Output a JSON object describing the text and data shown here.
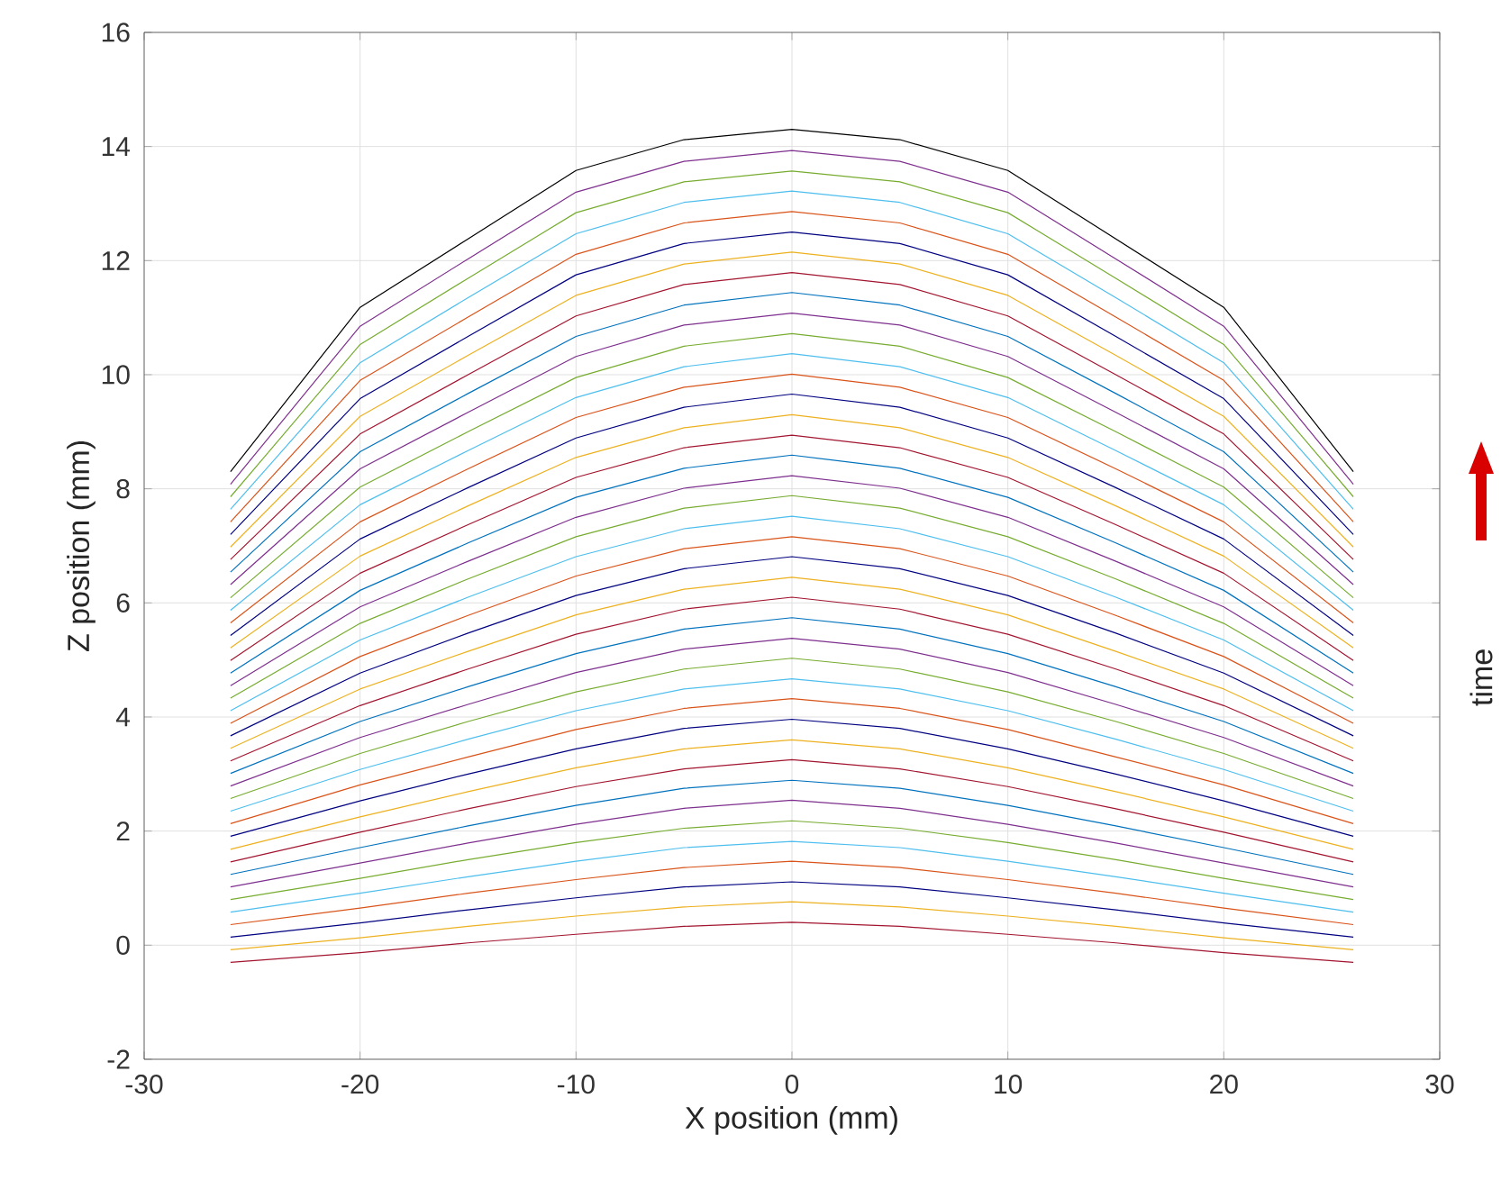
{
  "chart_data": {
    "type": "line",
    "xlabel": "X position (mm)",
    "ylabel": "Z position (mm)",
    "annotations": [
      "time"
    ],
    "xlim": [
      -30,
      30
    ],
    "ylim": [
      -2,
      16
    ],
    "xticks": [
      -30,
      -20,
      -10,
      0,
      10,
      20,
      30
    ],
    "yticks": [
      -2,
      0,
      2,
      4,
      6,
      8,
      10,
      12,
      14,
      16
    ],
    "grid": true,
    "marker": "none",
    "line_style": "solid",
    "x": [
      -26,
      -20,
      -15,
      -10,
      -5,
      0,
      5,
      10,
      15,
      20,
      26
    ],
    "series": [
      {
        "color": "#a2142f",
        "values": [
          -0.3,
          -0.13,
          0.04,
          0.19,
          0.33,
          0.4,
          0.33,
          0.19,
          0.04,
          -0.13,
          -0.3
        ]
      },
      {
        "color": "#edb120",
        "values": [
          -0.08,
          0.13,
          0.33,
          0.51,
          0.67,
          0.76,
          0.67,
          0.51,
          0.33,
          0.13,
          -0.08
        ]
      },
      {
        "color": "#000080",
        "values": [
          0.14,
          0.39,
          0.62,
          0.83,
          1.02,
          1.11,
          1.02,
          0.83,
          0.62,
          0.39,
          0.14
        ]
      },
      {
        "color": "#d95319",
        "values": [
          0.36,
          0.65,
          0.91,
          1.15,
          1.36,
          1.47,
          1.36,
          1.15,
          0.91,
          0.65,
          0.36
        ]
      },
      {
        "color": "#4dbeee",
        "values": [
          0.58,
          0.91,
          1.2,
          1.47,
          1.71,
          1.82,
          1.71,
          1.47,
          1.2,
          0.91,
          0.58
        ]
      },
      {
        "color": "#77ac30",
        "values": [
          0.8,
          1.17,
          1.5,
          1.8,
          2.05,
          2.18,
          2.05,
          1.8,
          1.5,
          1.17,
          0.8
        ]
      },
      {
        "color": "#7e2f8e",
        "values": [
          1.02,
          1.44,
          1.79,
          2.12,
          2.4,
          2.54,
          2.4,
          2.12,
          1.79,
          1.44,
          1.02
        ]
      },
      {
        "color": "#0072bd",
        "values": [
          1.24,
          1.71,
          2.09,
          2.45,
          2.75,
          2.89,
          2.75,
          2.45,
          2.09,
          1.71,
          1.24
        ]
      },
      {
        "color": "#a2142f",
        "values": [
          1.46,
          1.98,
          2.39,
          2.78,
          3.09,
          3.25,
          3.09,
          2.78,
          2.39,
          1.98,
          1.46
        ]
      },
      {
        "color": "#edb120",
        "values": [
          1.68,
          2.25,
          2.69,
          3.11,
          3.44,
          3.6,
          3.44,
          3.11,
          2.69,
          2.25,
          1.68
        ]
      },
      {
        "color": "#000080",
        "values": [
          1.91,
          2.53,
          3.0,
          3.44,
          3.8,
          3.96,
          3.8,
          3.44,
          3.0,
          2.53,
          1.91
        ]
      },
      {
        "color": "#d95319",
        "values": [
          2.13,
          2.81,
          3.3,
          3.78,
          4.15,
          4.32,
          4.15,
          3.78,
          3.3,
          2.81,
          2.13
        ]
      },
      {
        "color": "#4dbeee",
        "values": [
          2.35,
          3.08,
          3.61,
          4.11,
          4.49,
          4.67,
          4.49,
          4.11,
          3.61,
          3.08,
          2.35
        ]
      },
      {
        "color": "#77ac30",
        "values": [
          2.57,
          3.36,
          3.92,
          4.44,
          4.84,
          5.03,
          4.84,
          4.44,
          3.92,
          3.36,
          2.57
        ]
      },
      {
        "color": "#7e2f8e",
        "values": [
          2.79,
          3.64,
          4.22,
          4.78,
          5.19,
          5.38,
          5.19,
          4.78,
          4.22,
          3.64,
          2.79
        ]
      },
      {
        "color": "#0072bd",
        "values": [
          3.01,
          3.92,
          4.53,
          5.11,
          5.54,
          5.74,
          5.54,
          5.11,
          4.53,
          3.92,
          3.01
        ]
      },
      {
        "color": "#a2142f",
        "values": [
          3.23,
          4.2,
          4.84,
          5.45,
          5.89,
          6.1,
          5.89,
          5.45,
          4.84,
          4.2,
          3.23
        ]
      },
      {
        "color": "#edb120",
        "values": [
          3.45,
          4.49,
          5.15,
          5.79,
          6.24,
          6.45,
          6.24,
          5.79,
          5.15,
          4.49,
          3.45
        ]
      },
      {
        "color": "#000080",
        "values": [
          3.67,
          4.77,
          5.47,
          6.13,
          6.6,
          6.81,
          6.6,
          6.13,
          5.47,
          4.77,
          3.67
        ]
      },
      {
        "color": "#d95319",
        "values": [
          3.89,
          5.06,
          5.78,
          6.47,
          6.95,
          7.16,
          6.95,
          6.47,
          5.78,
          5.06,
          3.89
        ]
      },
      {
        "color": "#4dbeee",
        "values": [
          4.11,
          5.35,
          6.1,
          6.81,
          7.3,
          7.52,
          7.3,
          6.81,
          6.1,
          5.35,
          4.11
        ]
      },
      {
        "color": "#77ac30",
        "values": [
          4.33,
          5.64,
          6.42,
          7.16,
          7.66,
          7.88,
          7.66,
          7.16,
          6.42,
          5.64,
          4.33
        ]
      },
      {
        "color": "#7e2f8e",
        "values": [
          4.55,
          5.93,
          6.73,
          7.5,
          8.01,
          8.23,
          8.01,
          7.5,
          6.73,
          5.93,
          4.55
        ]
      },
      {
        "color": "#0072bd",
        "values": [
          4.77,
          6.22,
          7.05,
          7.85,
          8.36,
          8.59,
          8.36,
          7.85,
          7.05,
          6.22,
          4.77
        ]
      },
      {
        "color": "#a2142f",
        "values": [
          4.99,
          6.52,
          7.37,
          8.2,
          8.72,
          8.94,
          8.72,
          8.2,
          7.37,
          6.52,
          4.99
        ]
      },
      {
        "color": "#edb120",
        "values": [
          5.21,
          6.82,
          7.7,
          8.55,
          9.07,
          9.3,
          9.07,
          8.55,
          7.7,
          6.82,
          5.21
        ]
      },
      {
        "color": "#000080",
        "values": [
          5.43,
          7.12,
          8.02,
          8.89,
          9.43,
          9.66,
          9.43,
          8.89,
          8.02,
          7.12,
          5.43
        ]
      },
      {
        "color": "#d95319",
        "values": [
          5.65,
          7.42,
          8.35,
          9.25,
          9.78,
          10.01,
          9.78,
          9.25,
          8.35,
          7.42,
          5.65
        ]
      },
      {
        "color": "#4dbeee",
        "values": [
          5.87,
          7.72,
          8.67,
          9.6,
          10.14,
          10.37,
          10.14,
          9.6,
          8.67,
          7.72,
          5.87
        ]
      },
      {
        "color": "#77ac30",
        "values": [
          6.09,
          8.03,
          9.0,
          9.95,
          10.5,
          10.72,
          10.5,
          9.95,
          9.0,
          8.03,
          6.09
        ]
      },
      {
        "color": "#7e2f8e",
        "values": [
          6.32,
          8.35,
          9.34,
          10.32,
          10.87,
          11.08,
          10.87,
          10.32,
          9.34,
          8.35,
          6.32
        ]
      },
      {
        "color": "#0072bd",
        "values": [
          6.54,
          8.65,
          9.67,
          10.67,
          11.22,
          11.44,
          11.22,
          10.67,
          9.67,
          8.65,
          6.54
        ]
      },
      {
        "color": "#a2142f",
        "values": [
          6.76,
          8.96,
          10.0,
          11.03,
          11.58,
          11.79,
          11.58,
          11.03,
          10.0,
          8.96,
          6.76
        ]
      },
      {
        "color": "#edb120",
        "values": [
          6.98,
          9.27,
          10.34,
          11.39,
          11.94,
          12.15,
          11.94,
          11.39,
          10.34,
          9.27,
          6.98
        ]
      },
      {
        "color": "#000080",
        "values": [
          7.2,
          9.58,
          10.67,
          11.75,
          12.3,
          12.5,
          12.3,
          11.75,
          10.67,
          9.58,
          7.2
        ]
      },
      {
        "color": "#d95319",
        "values": [
          7.42,
          9.9,
          11.01,
          12.11,
          12.66,
          12.86,
          12.66,
          12.11,
          11.01,
          9.9,
          7.42
        ]
      },
      {
        "color": "#4dbeee",
        "values": [
          7.64,
          10.21,
          11.35,
          12.47,
          13.02,
          13.22,
          13.02,
          12.47,
          11.35,
          10.21,
          7.64
        ]
      },
      {
        "color": "#77ac30",
        "values": [
          7.86,
          10.53,
          11.69,
          12.84,
          13.38,
          13.57,
          13.38,
          12.84,
          11.69,
          10.53,
          7.86
        ]
      },
      {
        "color": "#7e2f8e",
        "values": [
          8.08,
          10.85,
          12.03,
          13.2,
          13.74,
          13.93,
          13.74,
          13.2,
          12.03,
          10.85,
          8.08
        ]
      },
      {
        "color": "#000000",
        "values": [
          8.3,
          11.18,
          12.38,
          13.58,
          14.12,
          14.3,
          14.12,
          13.58,
          12.38,
          11.18,
          8.3
        ]
      }
    ]
  }
}
